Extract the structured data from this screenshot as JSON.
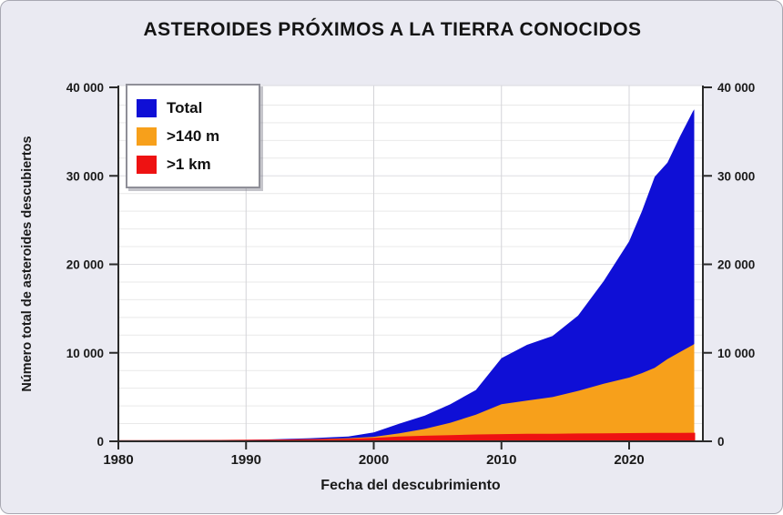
{
  "title": "ASTEROIDES PRÓXIMOS A LA TIERRA CONOCIDOS",
  "colors": {
    "background": "#eaeaf2",
    "plot_background": "#ffffff",
    "grid_minor": "#e9e9e9",
    "grid_major": "#dedee2",
    "grid_vertical": "#d4d4d8",
    "axis": "#2a2a2a",
    "tick_label": "#1a1a1a",
    "plot_top_edge": "#d9d9df"
  },
  "chart_data": {
    "type": "area",
    "title": "ASTEROIDES PRÓXIMOS A LA TIERRA CONOCIDOS",
    "xlabel": "Fecha del descubrimiento",
    "ylabel": "Número total de asteroides descubiertos",
    "legend_position": "top-left",
    "grid": "horizontal minor every 2000, vertical at decades",
    "xlim": [
      1980,
      2025.8
    ],
    "ylim": [
      0,
      40000
    ],
    "x_ticks": [
      1980,
      1990,
      2000,
      2010,
      2020
    ],
    "x_tick_labels": [
      "1980",
      "1990",
      "2000",
      "2010",
      "2020"
    ],
    "y_ticks": [
      0,
      10000,
      20000,
      30000,
      40000
    ],
    "y_tick_labels": [
      "0",
      "10 000",
      "20 000",
      "30 000",
      "40 000"
    ],
    "x": [
      1980,
      1982,
      1985,
      1988,
      1990,
      1992,
      1995,
      1998,
      2000,
      2002,
      2004,
      2006,
      2008,
      2010,
      2012,
      2014,
      2016,
      2018,
      2020,
      2021,
      2022,
      2023,
      2024,
      2025,
      2025.1
    ],
    "series": [
      {
        "name": "Total",
        "color": "#0f0fd6",
        "values": [
          60,
          75,
          95,
          120,
          150,
          220,
          350,
          550,
          1000,
          2000,
          2900,
          4200,
          5800,
          9400,
          10900,
          11900,
          14200,
          18100,
          22600,
          26000,
          29900,
          31500,
          34500,
          37300,
          37500
        ]
      },
      {
        "name": ">140 m",
        "color": "#f7a01b",
        "values": [
          50,
          55,
          65,
          85,
          110,
          160,
          250,
          350,
          500,
          900,
          1400,
          2100,
          3000,
          4200,
          4600,
          5000,
          5700,
          6500,
          7200,
          7700,
          8300,
          9300,
          10100,
          10900,
          11000
        ]
      },
      {
        "name": ">1 km",
        "color": "#ee1212",
        "values": [
          30,
          35,
          45,
          55,
          70,
          95,
          130,
          190,
          290,
          430,
          520,
          600,
          670,
          710,
          740,
          755,
          780,
          800,
          820,
          830,
          840,
          850,
          855,
          860,
          860
        ]
      }
    ]
  }
}
